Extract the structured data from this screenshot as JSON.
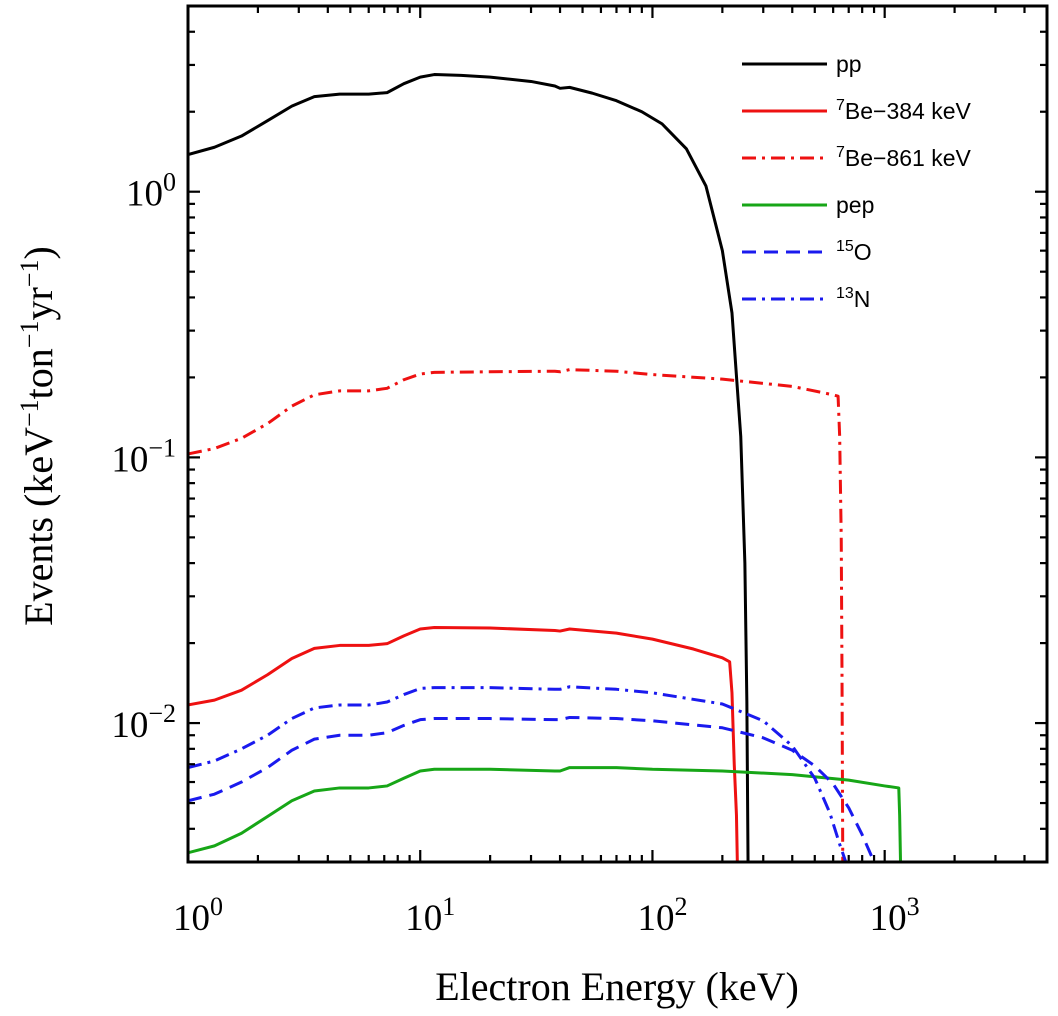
{
  "chart_data": {
    "type": "line",
    "xlabel": "Electron Energy (keV)",
    "ylabel": "Events (keV−1ton−1yr−1)",
    "x_scale": "log",
    "y_scale": "log",
    "xlim": [
      1,
      5000
    ],
    "ylim": [
      0.003,
      5.0
    ],
    "grid": false,
    "legend_position": "top-right",
    "x_ticks": [
      {
        "value": 1,
        "base": "10",
        "exp": "0"
      },
      {
        "value": 10,
        "base": "10",
        "exp": "1"
      },
      {
        "value": 100,
        "base": "10",
        "exp": "2"
      },
      {
        "value": 1000,
        "base": "10",
        "exp": "3"
      }
    ],
    "y_ticks": [
      {
        "value": 1,
        "base": "10",
        "exp": "0"
      },
      {
        "value": 0.1,
        "base": "10",
        "exp": "−1"
      },
      {
        "value": 0.01,
        "base": "10",
        "exp": "−2"
      }
    ],
    "series": [
      {
        "name": "pp",
        "label_sup": "",
        "label_main": "pp",
        "color": "#000000",
        "dash": "solid",
        "points": [
          [
            1,
            1.38
          ],
          [
            1.3,
            1.47
          ],
          [
            1.7,
            1.62
          ],
          [
            2.2,
            1.85
          ],
          [
            2.8,
            2.1
          ],
          [
            3.5,
            2.28
          ],
          [
            4.5,
            2.33
          ],
          [
            6,
            2.33
          ],
          [
            7.2,
            2.36
          ],
          [
            8.5,
            2.55
          ],
          [
            10,
            2.7
          ],
          [
            11.5,
            2.76
          ],
          [
            15,
            2.74
          ],
          [
            20,
            2.7
          ],
          [
            30,
            2.6
          ],
          [
            38,
            2.5
          ],
          [
            40,
            2.45
          ],
          [
            44,
            2.47
          ],
          [
            55,
            2.35
          ],
          [
            70,
            2.2
          ],
          [
            90,
            2.0
          ],
          [
            110,
            1.8
          ],
          [
            140,
            1.45
          ],
          [
            170,
            1.05
          ],
          [
            200,
            0.6
          ],
          [
            220,
            0.35
          ],
          [
            240,
            0.12
          ],
          [
            250,
            0.04
          ],
          [
            255,
            0.012
          ],
          [
            258,
            0.003
          ]
        ]
      },
      {
        "name": "7Be-384 keV",
        "label_sup": "7",
        "label_main": "Be−384 keV",
        "color": "#ee1111",
        "dash": "solid",
        "points": [
          [
            1,
            0.0117
          ],
          [
            1.3,
            0.0122
          ],
          [
            1.7,
            0.0133
          ],
          [
            2.2,
            0.0152
          ],
          [
            2.8,
            0.0175
          ],
          [
            3.5,
            0.0191
          ],
          [
            4.5,
            0.0196
          ],
          [
            6,
            0.0196
          ],
          [
            7.2,
            0.0199
          ],
          [
            8.5,
            0.0213
          ],
          [
            10,
            0.0226
          ],
          [
            11.5,
            0.0229
          ],
          [
            20,
            0.0228
          ],
          [
            38,
            0.0223
          ],
          [
            40,
            0.0222
          ],
          [
            44,
            0.0226
          ],
          [
            70,
            0.0218
          ],
          [
            100,
            0.0207
          ],
          [
            150,
            0.019
          ],
          [
            200,
            0.0176
          ],
          [
            215,
            0.017
          ],
          [
            220,
            0.013
          ],
          [
            225,
            0.007
          ],
          [
            230,
            0.0045
          ],
          [
            232,
            0.003
          ]
        ]
      },
      {
        "name": "7Be-861 keV",
        "label_sup": "7",
        "label_main": "Be−861 keV",
        "color": "#ee1111",
        "dash": "dashdot",
        "points": [
          [
            1,
            0.103
          ],
          [
            1.3,
            0.108
          ],
          [
            1.7,
            0.118
          ],
          [
            2.2,
            0.134
          ],
          [
            2.8,
            0.156
          ],
          [
            3.5,
            0.172
          ],
          [
            4.5,
            0.178
          ],
          [
            6,
            0.178
          ],
          [
            7.2,
            0.182
          ],
          [
            8.5,
            0.196
          ],
          [
            10,
            0.206
          ],
          [
            11.5,
            0.209
          ],
          [
            20,
            0.21
          ],
          [
            38,
            0.211
          ],
          [
            40,
            0.21
          ],
          [
            44,
            0.214
          ],
          [
            70,
            0.211
          ],
          [
            100,
            0.205
          ],
          [
            200,
            0.197
          ],
          [
            400,
            0.185
          ],
          [
            600,
            0.172
          ],
          [
            630,
            0.17
          ],
          [
            640,
            0.12
          ],
          [
            650,
            0.05
          ],
          [
            655,
            0.015
          ],
          [
            660,
            0.003
          ]
        ]
      },
      {
        "name": "pep",
        "label_sup": "",
        "label_main": "pep",
        "color": "#17a617",
        "dash": "solid",
        "points": [
          [
            1,
            0.00325
          ],
          [
            1.3,
            0.00345
          ],
          [
            1.7,
            0.00385
          ],
          [
            2.2,
            0.00445
          ],
          [
            2.8,
            0.0051
          ],
          [
            3.5,
            0.00555
          ],
          [
            4.5,
            0.0057
          ],
          [
            6,
            0.0057
          ],
          [
            7.2,
            0.0058
          ],
          [
            8.5,
            0.0062
          ],
          [
            10,
            0.0066
          ],
          [
            11.5,
            0.0067
          ],
          [
            20,
            0.0067
          ],
          [
            38,
            0.0066
          ],
          [
            40,
            0.0066
          ],
          [
            44,
            0.0068
          ],
          [
            70,
            0.0068
          ],
          [
            100,
            0.0067
          ],
          [
            200,
            0.0066
          ],
          [
            400,
            0.0064
          ],
          [
            700,
            0.0061
          ],
          [
            1000,
            0.0058
          ],
          [
            1150,
            0.0057
          ],
          [
            1160,
            0.0045
          ],
          [
            1170,
            0.003
          ]
        ]
      },
      {
        "name": "15O",
        "label_sup": "15",
        "label_main": "O",
        "color": "#1a1aee",
        "dash": "dashed",
        "points": [
          [
            1,
            0.0051
          ],
          [
            1.3,
            0.0054
          ],
          [
            1.7,
            0.006
          ],
          [
            2.2,
            0.0068
          ],
          [
            2.8,
            0.0079
          ],
          [
            3.5,
            0.0087
          ],
          [
            4.5,
            0.009
          ],
          [
            6,
            0.009
          ],
          [
            7.2,
            0.0092
          ],
          [
            8.5,
            0.0098
          ],
          [
            10,
            0.0103
          ],
          [
            11.5,
            0.0104
          ],
          [
            20,
            0.0104
          ],
          [
            38,
            0.0103
          ],
          [
            40,
            0.0103
          ],
          [
            44,
            0.0105
          ],
          [
            70,
            0.0104
          ],
          [
            100,
            0.0102
          ],
          [
            200,
            0.0096
          ],
          [
            300,
            0.0088
          ],
          [
            400,
            0.0079
          ],
          [
            500,
            0.0069
          ],
          [
            600,
            0.0059
          ],
          [
            700,
            0.0048
          ],
          [
            800,
            0.0038
          ],
          [
            900,
            0.003
          ]
        ]
      },
      {
        "name": "13N",
        "label_sup": "13",
        "label_main": "N",
        "color": "#1a1aee",
        "dash": "dashdot",
        "points": [
          [
            1,
            0.0068
          ],
          [
            1.3,
            0.0072
          ],
          [
            1.7,
            0.008
          ],
          [
            2.2,
            0.009
          ],
          [
            2.8,
            0.0104
          ],
          [
            3.5,
            0.0114
          ],
          [
            4.5,
            0.0117
          ],
          [
            6,
            0.0117
          ],
          [
            7.2,
            0.012
          ],
          [
            8.5,
            0.0128
          ],
          [
            10,
            0.0135
          ],
          [
            11.5,
            0.0136
          ],
          [
            20,
            0.0136
          ],
          [
            38,
            0.0134
          ],
          [
            40,
            0.0134
          ],
          [
            44,
            0.0137
          ],
          [
            70,
            0.0134
          ],
          [
            100,
            0.013
          ],
          [
            200,
            0.0118
          ],
          [
            300,
            0.0102
          ],
          [
            400,
            0.0082
          ],
          [
            500,
            0.0062
          ],
          [
            580,
            0.0046
          ],
          [
            640,
            0.0035
          ],
          [
            680,
            0.003
          ]
        ]
      }
    ]
  }
}
